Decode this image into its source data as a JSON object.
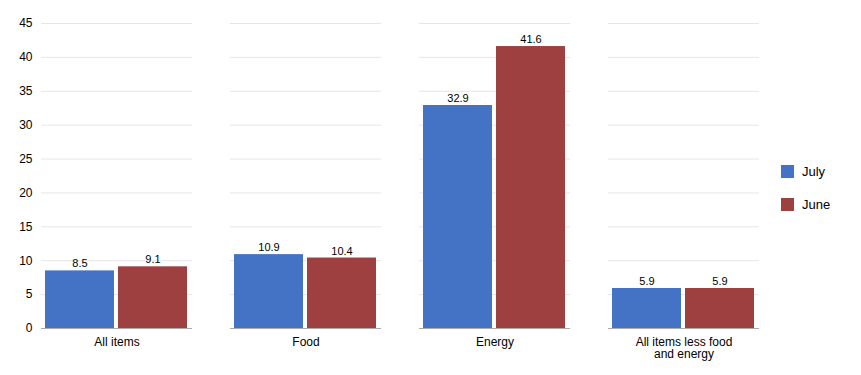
{
  "chart_data": {
    "type": "bar",
    "categories": [
      "All items",
      "Food",
      "Energy",
      "All items less food\nand energy"
    ],
    "series": [
      {
        "name": "July",
        "color": "#4472C4",
        "values": [
          8.5,
          10.9,
          32.9,
          5.9
        ]
      },
      {
        "name": "June",
        "color": "#9E4040",
        "values": [
          9.1,
          10.4,
          41.6,
          5.9
        ]
      }
    ],
    "ylim": [
      0,
      45
    ],
    "yticks": [
      0,
      5,
      10,
      15,
      20,
      25,
      30,
      35,
      40,
      45
    ],
    "grid": true,
    "legend": "right",
    "data_labels": true
  }
}
